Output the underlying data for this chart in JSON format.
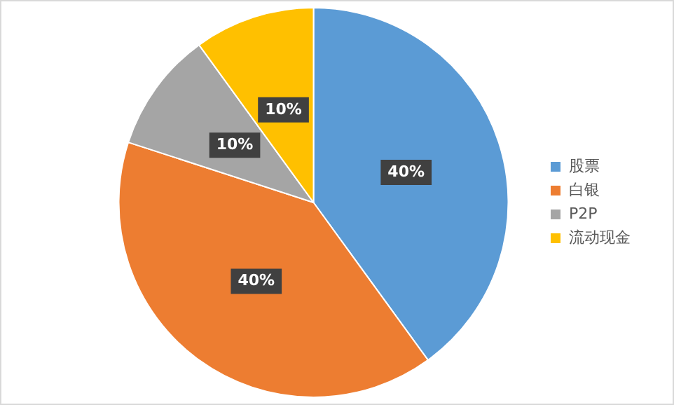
{
  "chart_data": {
    "type": "pie",
    "categories": [
      "股票",
      "白银",
      "P2P",
      "流动现金"
    ],
    "values": [
      40,
      40,
      10,
      10
    ],
    "colors": [
      "#5b9bd5",
      "#ed7d31",
      "#a5a5a5",
      "#ffc000"
    ],
    "value_labels": [
      "40%",
      "40%",
      "10%",
      "10%"
    ],
    "legend": "right"
  }
}
